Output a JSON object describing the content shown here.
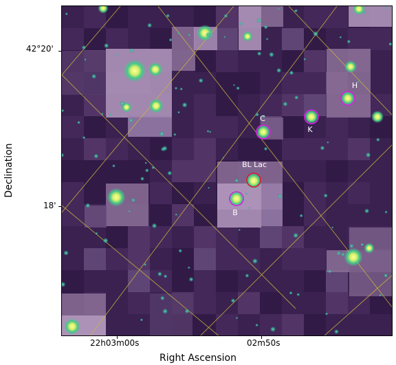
{
  "axes": {
    "xlabel": "Right Ascension",
    "ylabel": "Declination",
    "x_ticks": [
      "22h03m00s",
      "02m50s"
    ],
    "y_ticks": [
      "42°20'",
      "18'"
    ]
  },
  "sources": [
    {
      "name": "BL Lac",
      "ring_color": "#e0142c"
    },
    {
      "name": "C",
      "ring_color": "#d91ee0"
    },
    {
      "name": "K",
      "ring_color": "#d91ee0"
    },
    {
      "name": "H",
      "ring_color": "#d91ee0"
    },
    {
      "name": "B",
      "ring_color": "#d91ee0"
    }
  ],
  "colors": {
    "background": "#3c2452",
    "bright_patch": "#b59ac0",
    "star_core": "#f2f57a",
    "star_halo": "#4fd18a",
    "grid": "#c9b53a"
  }
}
